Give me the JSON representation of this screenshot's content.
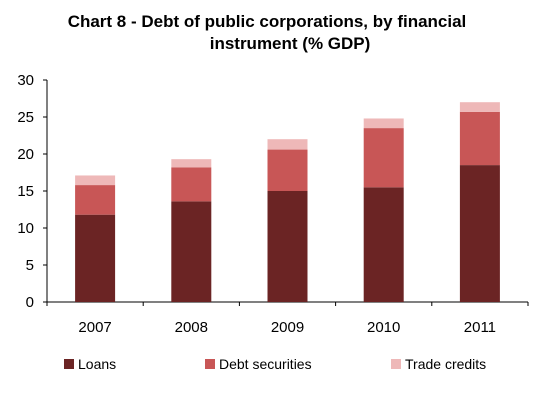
{
  "chart_data": {
    "type": "bar",
    "stacked": true,
    "title_lines": [
      "Chart 8 - Debt of public corporations, by financial",
      "instrument (% GDP)"
    ],
    "xlabel": "",
    "ylabel": "",
    "categories": [
      "2007",
      "2008",
      "2009",
      "2010",
      "2011"
    ],
    "ylim": [
      0,
      30
    ],
    "yticks": [
      0,
      5,
      10,
      15,
      20,
      25,
      30
    ],
    "grid": false,
    "legend_position": "bottom",
    "series": [
      {
        "name": "Loans",
        "color": "#6b2424",
        "values": [
          11.8,
          13.6,
          15.0,
          15.5,
          18.5
        ]
      },
      {
        "name": "Debt securities",
        "color": "#c85656",
        "values": [
          4.0,
          4.6,
          5.6,
          8.0,
          7.2
        ]
      },
      {
        "name": "Trade credits",
        "color": "#eeb8b8",
        "values": [
          1.3,
          1.1,
          1.4,
          1.3,
          1.3
        ]
      }
    ]
  }
}
